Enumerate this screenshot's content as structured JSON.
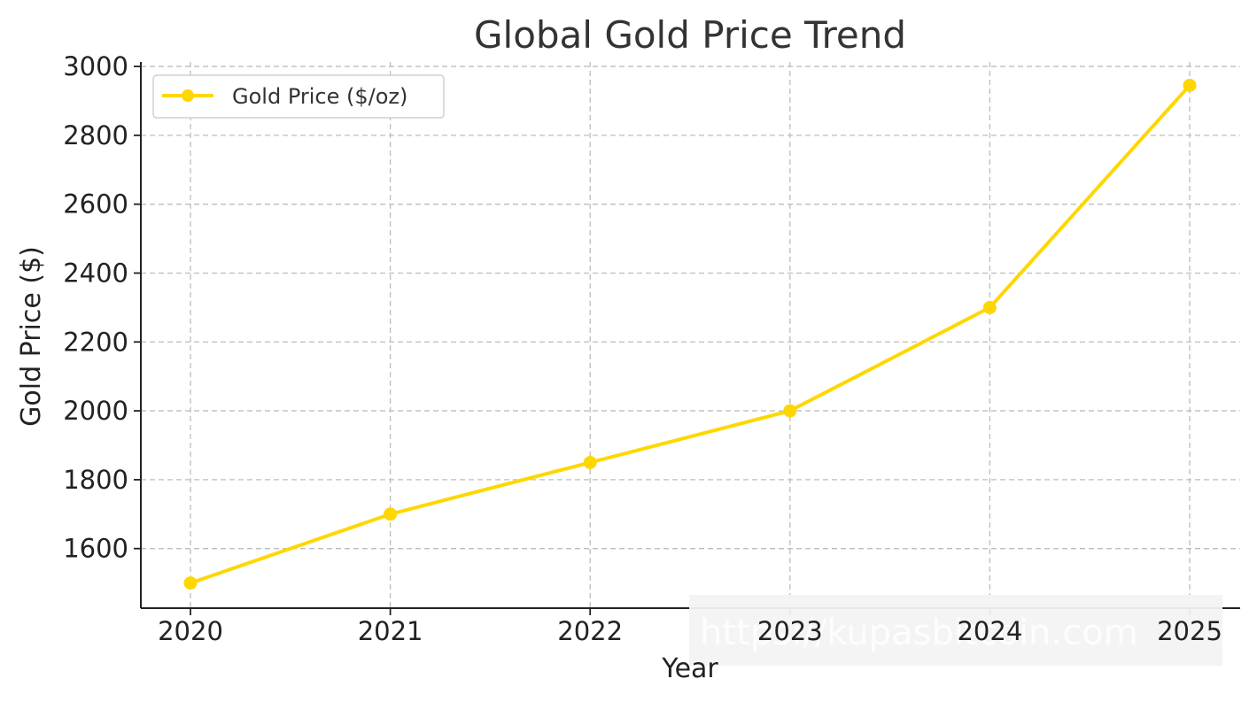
{
  "chart_data": {
    "type": "line",
    "title": "Global Gold Price Trend",
    "xlabel": "Year",
    "ylabel": "Gold Price ($)",
    "x": [
      "2020",
      "2021",
      "2022",
      "2023",
      "2024",
      "2025"
    ],
    "series": [
      {
        "name": "Gold Price ($/oz)",
        "values": [
          1500,
          1700,
          1850,
          2000,
          2300,
          2945
        ],
        "color": "#FFD700",
        "marker": "circle"
      }
    ],
    "yticks": [
      "1600",
      "1800",
      "2000",
      "2200",
      "2400",
      "2600",
      "2800",
      "3000"
    ],
    "ylim": [
      1427,
      3013
    ],
    "grid": true,
    "grid_style": "dashed",
    "legend_position": "top-left"
  },
  "watermark": {
    "text": "https://kupasbitcoin.com",
    "background": "#f2f2f2"
  }
}
